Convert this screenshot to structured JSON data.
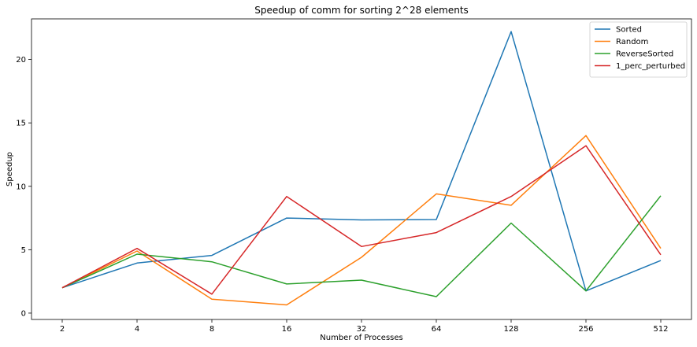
{
  "chart_data": {
    "type": "line",
    "title": "Speedup of comm for sorting 2^28 elements",
    "xlabel": "Number of Processes",
    "ylabel": "Speedup",
    "categories": [
      "2",
      "4",
      "8",
      "16",
      "32",
      "64",
      "128",
      "256",
      "512"
    ],
    "ylim": [
      -0.5,
      23.2
    ],
    "yticks": [
      0,
      5,
      10,
      15,
      20
    ],
    "grid": false,
    "legend_position": "top-right",
    "series": [
      {
        "name": "Sorted",
        "color": "#1f77b4",
        "values": [
          2.0,
          3.95,
          4.55,
          7.5,
          7.35,
          7.38,
          22.2,
          1.75,
          4.15
        ]
      },
      {
        "name": "Random",
        "color": "#ff7f0e",
        "values": [
          2.0,
          4.9,
          1.1,
          0.65,
          4.4,
          9.4,
          8.5,
          14.0,
          5.1
        ]
      },
      {
        "name": "ReverseSorted",
        "color": "#2ca02c",
        "values": [
          2.0,
          4.65,
          4.05,
          2.3,
          2.6,
          1.3,
          7.1,
          1.75,
          9.25
        ]
      },
      {
        "name": "1_perc_perturbed",
        "color": "#d62728",
        "values": [
          2.0,
          5.1,
          1.5,
          9.2,
          5.25,
          6.35,
          9.2,
          13.2,
          4.6
        ]
      }
    ]
  }
}
